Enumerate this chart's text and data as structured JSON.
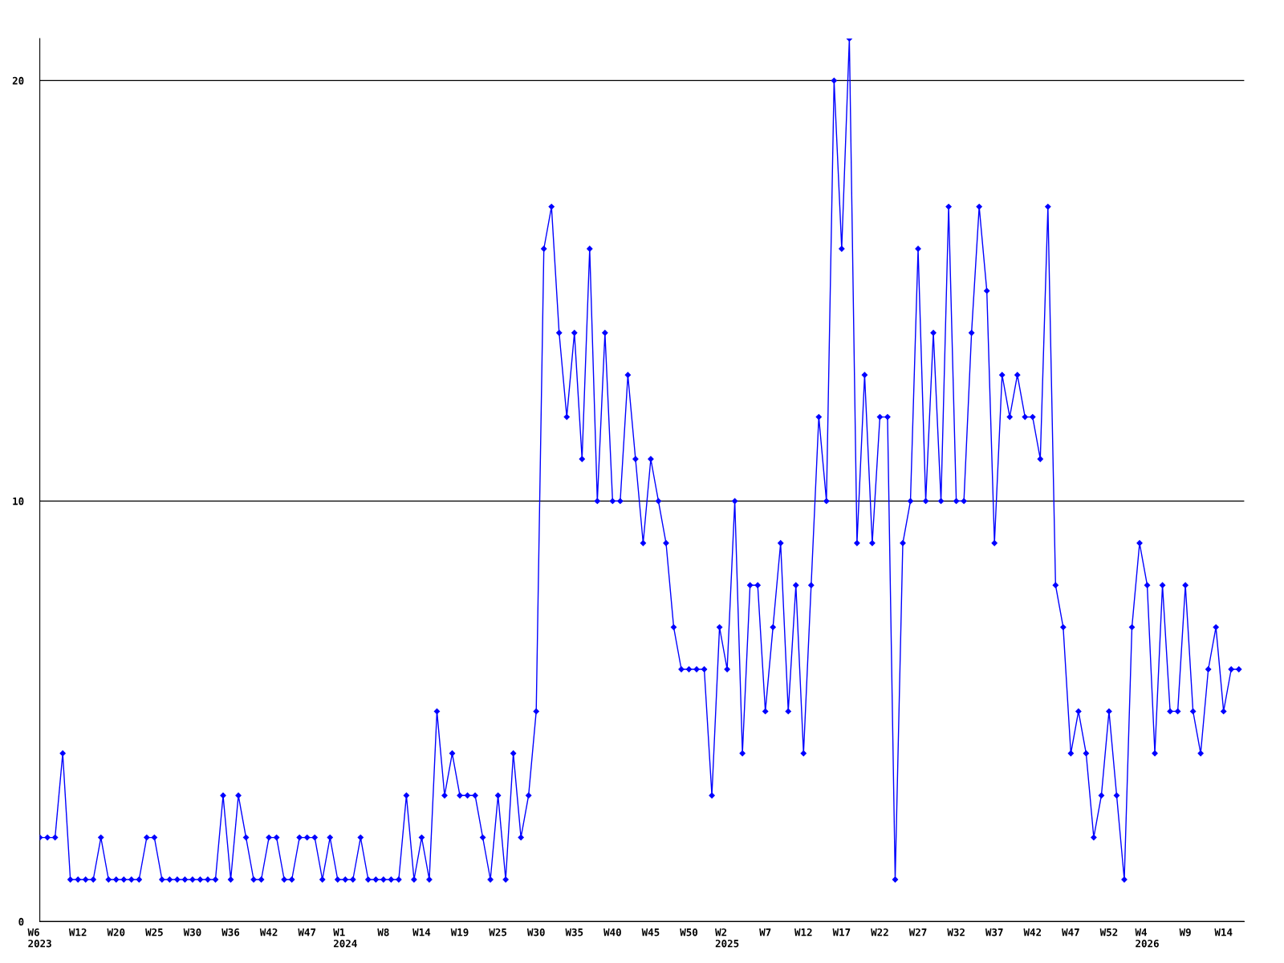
{
  "chart_data": {
    "type": "line",
    "categories": [
      "W6\n2023",
      null,
      null,
      null,
      null,
      "W12",
      null,
      null,
      null,
      null,
      "W20",
      null,
      null,
      null,
      null,
      "W25",
      null,
      null,
      null,
      null,
      "W30",
      null,
      null,
      null,
      null,
      "W36",
      null,
      null,
      null,
      null,
      "W42",
      null,
      null,
      null,
      null,
      "W47",
      null,
      null,
      null,
      null,
      "W1\n2024",
      null,
      null,
      null,
      null,
      "W8",
      null,
      null,
      null,
      null,
      "W14",
      null,
      null,
      null,
      null,
      "W19",
      null,
      null,
      null,
      null,
      "W25",
      null,
      null,
      null,
      null,
      "W30",
      null,
      null,
      null,
      null,
      "W35",
      null,
      null,
      null,
      null,
      "W40",
      null,
      null,
      null,
      null,
      "W45",
      null,
      null,
      null,
      null,
      "W50",
      null,
      null,
      null,
      null,
      "W2\n2025",
      null,
      null,
      null,
      null,
      "W7",
      null,
      null,
      null,
      null,
      "W12",
      null,
      null,
      null,
      null,
      "W17",
      null,
      null,
      null,
      null,
      "W22",
      null,
      null,
      null,
      null,
      "W27",
      null,
      null,
      null,
      null,
      "W32",
      null,
      null,
      null,
      null,
      "W37",
      null,
      null,
      null,
      null,
      "W42",
      null,
      null,
      null,
      null,
      "W47",
      null,
      null,
      null,
      null,
      "W52",
      null,
      null,
      null,
      null,
      "W4\n2026",
      null,
      null,
      null,
      null,
      "W9",
      null,
      null,
      null,
      null,
      "W14",
      null,
      null
    ],
    "series": [
      {
        "color": "#0000ff",
        "values": [
          2,
          2,
          2,
          4,
          1,
          1,
          1,
          1,
          2,
          1,
          1,
          1,
          1,
          1,
          2,
          2,
          1,
          1,
          1,
          1,
          1,
          1,
          1,
          1,
          3,
          1,
          3,
          2,
          1,
          1,
          2,
          2,
          1,
          1,
          2,
          2,
          2,
          1,
          2,
          1,
          1,
          1,
          2,
          1,
          1,
          1,
          1,
          1,
          3,
          1,
          2,
          1,
          5,
          3,
          4,
          3,
          3,
          3,
          2,
          1,
          3,
          1,
          4,
          2,
          3,
          5,
          16,
          17,
          14,
          12,
          14,
          11,
          16,
          10,
          14,
          10,
          10,
          13,
          11,
          9,
          11,
          10,
          9,
          7,
          6,
          6,
          6,
          6,
          3,
          7,
          6,
          10,
          4,
          8,
          8,
          5,
          7,
          9,
          5,
          8,
          4,
          8,
          12,
          10,
          20,
          16,
          21,
          9,
          13,
          9,
          12,
          12,
          1,
          9,
          10,
          16,
          10,
          14,
          10,
          17,
          10,
          10,
          14,
          17,
          15,
          9,
          13,
          12,
          13,
          12,
          12,
          11,
          17,
          8,
          7,
          4,
          5,
          4,
          2,
          3,
          5,
          3,
          1,
          7,
          9,
          8,
          4,
          8,
          5,
          5,
          8,
          5,
          4,
          6,
          7,
          5,
          6,
          6
        ]
      }
    ],
    "ylim": [
      0,
      21
    ],
    "yticks": [
      0,
      10,
      20
    ],
    "grid": "y",
    "marker": "diamond",
    "line_style": "solid"
  }
}
